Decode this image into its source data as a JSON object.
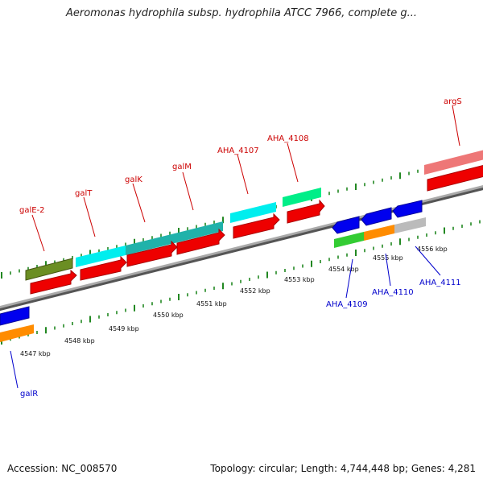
{
  "title": "Aeromonas hydrophila subsp. hydrophila ATCC 7966, complete g...",
  "footer": {
    "accession": "Accession: NC_008570",
    "info": "Topology: circular; Length: 4,744,448 bp; Genes: 4,281"
  },
  "colors": {
    "forward_label": "#cc0000",
    "reverse_label": "#0000cc",
    "tick": "#228822",
    "backbone": "#888888"
  },
  "scale_labels": [
    "4547 kbp",
    "4548 kbp",
    "4549 kbp",
    "4550 kbp",
    "4551 kbp",
    "4552 kbp",
    "4553 kbp",
    "4554 kbp",
    "4555 kbp",
    "4556 kbp"
  ],
  "forward_genes": [
    {
      "label": "galE-2",
      "track_color": "#6b8e23"
    },
    {
      "label": "galT",
      "track_color": "#00eeee"
    },
    {
      "label": "galK",
      "track_color": "#20b2aa"
    },
    {
      "label": "galM",
      "track_color": "#20b2aa"
    },
    {
      "label": "AHA_4107",
      "track_color": "#00eeee"
    },
    {
      "label": "AHA_4108",
      "track_color": "#00ee88"
    },
    {
      "label": "argS",
      "track_color": "#ee7777"
    }
  ],
  "reverse_genes": [
    {
      "label": "galR",
      "track_color": "#ff8c00"
    },
    {
      "label": "AHA_4109",
      "track_color": "#33cc33"
    },
    {
      "label": "AHA_4110",
      "track_color": "#ff8c00"
    },
    {
      "label": "AHA_4111",
      "track_color": "#bbbbbb"
    }
  ]
}
